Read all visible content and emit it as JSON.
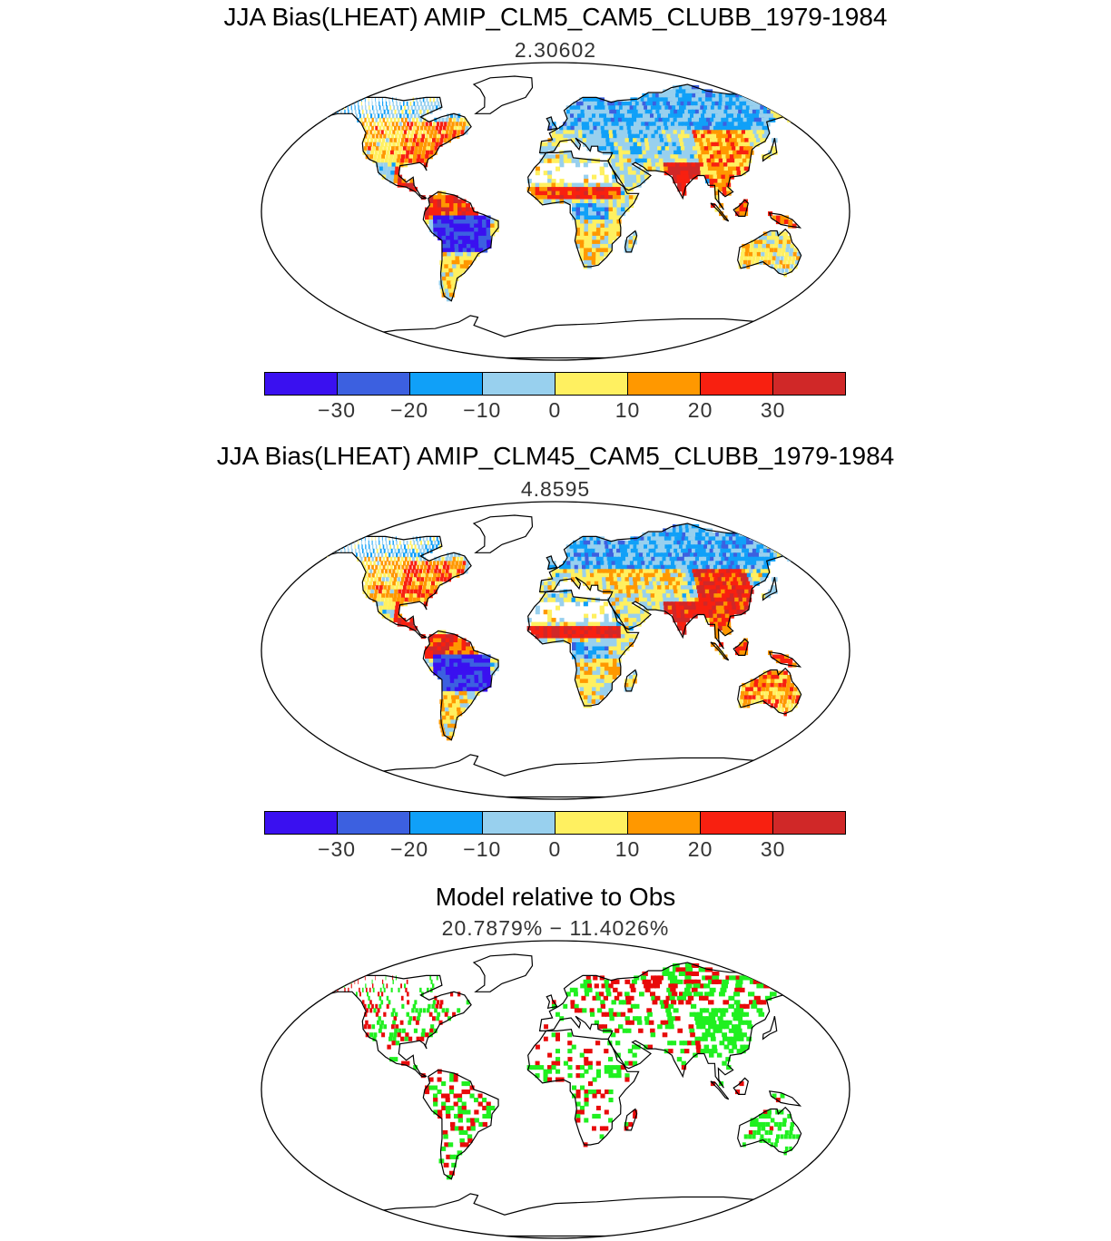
{
  "panels": [
    {
      "title": "JJA Bias(LHEAT) AMIP_CLM5_CAM5_CLUBB_1979-1984",
      "subtitle": "2.30602"
    },
    {
      "title": "JJA Bias(LHEAT) AMIP_CLM45_CAM5_CLUBB_1979-1984",
      "subtitle": "4.8595"
    },
    {
      "title": "Model relative to Obs",
      "subtitle": "20.7879% − 11.4026%"
    }
  ],
  "colorbar": {
    "colors": [
      "#3a10f0",
      "#3c60e0",
      "#10a0f8",
      "#98d0ee",
      "#fff060",
      "#ff9800",
      "#f82010",
      "#d02828"
    ],
    "ticks": [
      "−30",
      "−20",
      "−10",
      "0",
      "10",
      "20",
      "30"
    ]
  },
  "map_colors": {
    "land_outline": "#000000",
    "better": "#20f020",
    "worse": "#e80a0a"
  }
}
